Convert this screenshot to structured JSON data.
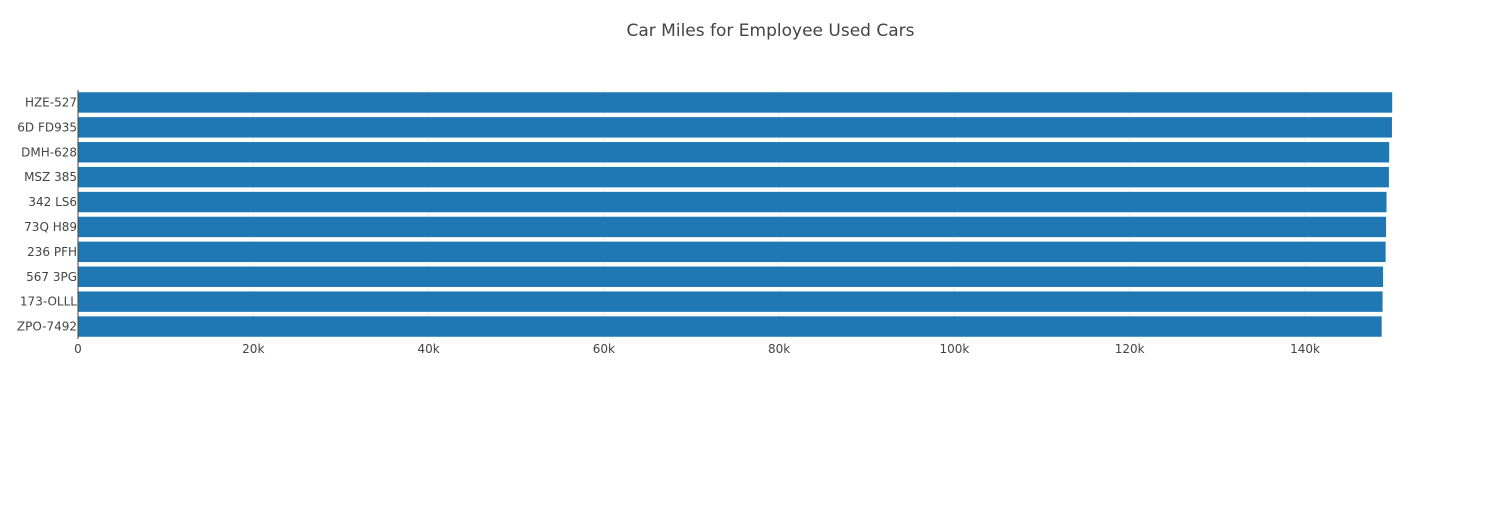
{
  "chart_data": {
    "type": "bar",
    "orientation": "horizontal",
    "title": "Car Miles for Employee Used Cars",
    "xlabel": "",
    "ylabel": "",
    "categories": [
      "HZE-527",
      "6D FD935",
      "DMH-628",
      "MSZ 385",
      "342 LS6",
      "73Q H89",
      "236 PFH",
      "567 3PG",
      "173-OLLL",
      "ZPO-7492"
    ],
    "values": [
      149950,
      149920,
      149600,
      149570,
      149300,
      149250,
      149200,
      148900,
      148850,
      148750
    ],
    "xlim": [
      0,
      157000
    ],
    "xticks": [
      0,
      20000,
      40000,
      60000,
      80000,
      100000,
      120000,
      140000
    ],
    "xtick_labels": [
      "0",
      "20k",
      "40k",
      "60k",
      "80k",
      "100k",
      "120k",
      "140k"
    ],
    "grid": true,
    "bar_color": "#1f77b4"
  }
}
